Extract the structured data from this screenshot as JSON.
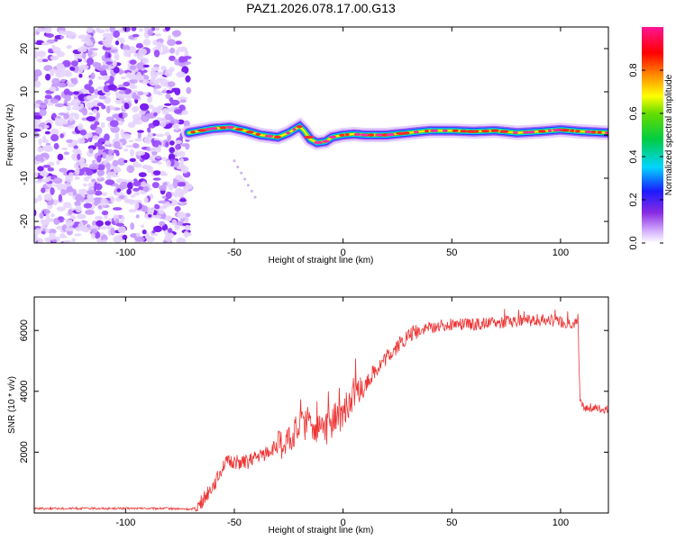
{
  "title": "PAZ1.2026.078.17.00.G13",
  "chart_data": [
    {
      "type": "heatmap",
      "name": "spectrogram",
      "xlabel": "Height of straight line (km)",
      "ylabel": "Frequency (Hz)",
      "xlim": [
        -142,
        122
      ],
      "ylim": [
        -25,
        25
      ],
      "xticks": [
        -100,
        -50,
        0,
        50,
        100
      ],
      "xtick_labels": [
        "-100",
        "-50",
        "0",
        "50",
        "100"
      ],
      "yticks": [
        -20,
        -10,
        0,
        10,
        20
      ],
      "ytick_labels": [
        "-20",
        "-10",
        "0",
        "10",
        "20"
      ],
      "noise_region_x": [
        -142,
        -71
      ],
      "signal_region_x": [
        -71,
        122
      ],
      "signal_ridge": {
        "x": [
          -71,
          -60,
          -52,
          -45,
          -38,
          -30,
          -25,
          -20,
          -18,
          -15,
          -12,
          -8,
          -5,
          0,
          5,
          10,
          20,
          30,
          40,
          50,
          60,
          70,
          80,
          90,
          100,
          110,
          122
        ],
        "y": [
          0.5,
          1.5,
          1.8,
          1.0,
          0.0,
          -0.5,
          0.5,
          2.0,
          1.0,
          -1.0,
          -1.8,
          -1.5,
          -0.5,
          0.0,
          0.2,
          0.0,
          0.0,
          0.5,
          1.0,
          1.0,
          0.8,
          1.0,
          0.5,
          0.8,
          1.2,
          0.8,
          0.5
        ]
      },
      "colorbar": {
        "label": "Normalized spectral amplitude",
        "range": [
          0.0,
          1.0
        ],
        "ticks": [
          0.0,
          0.2,
          0.4,
          0.6,
          0.8
        ],
        "tick_labels": [
          "0.0",
          "0.2",
          "0.4",
          "0.6",
          "0.8"
        ],
        "colormap": [
          "#ffffff",
          "#8a2be2",
          "#0000ff",
          "#00e5ff",
          "#00dd00",
          "#ffff00",
          "#ff8800",
          "#ff0000",
          "#ff1493"
        ]
      }
    },
    {
      "type": "line",
      "name": "snr",
      "xlabel": "Height of straight line (km)",
      "ylabel": "SNR (10 * v/v)",
      "xlim": [
        -142,
        122
      ],
      "ylim": [
        0,
        7100
      ],
      "xticks": [
        -100,
        -50,
        0,
        50,
        100
      ],
      "xtick_labels": [
        "-100",
        "-50",
        "0",
        "50",
        "100"
      ],
      "yticks": [
        2000,
        4000,
        6000
      ],
      "ytick_labels": [
        "2000",
        "4000",
        "6000"
      ],
      "color": "#ee3333",
      "series": [
        {
          "name": "SNR",
          "x": [
            -142,
            -120,
            -100,
            -80,
            -70,
            -66,
            -62,
            -60,
            -58,
            -55,
            -50,
            -45,
            -40,
            -35,
            -30,
            -25,
            -20,
            -15,
            -10,
            -5,
            0,
            5,
            10,
            15,
            20,
            25,
            30,
            35,
            40,
            45,
            50,
            60,
            70,
            80,
            90,
            100,
            105,
            108,
            109,
            110,
            115,
            122
          ],
          "y": [
            150,
            150,
            150,
            150,
            120,
            250,
            700,
            900,
            1100,
            1600,
            1700,
            1650,
            1800,
            2000,
            2200,
            2500,
            2800,
            3000,
            2600,
            3000,
            3300,
            3700,
            4200,
            4700,
            5100,
            5500,
            5800,
            6000,
            6100,
            6150,
            6200,
            6200,
            6250,
            6300,
            6350,
            6300,
            6250,
            6200,
            3700,
            3500,
            3450,
            3400
          ]
        }
      ]
    }
  ]
}
